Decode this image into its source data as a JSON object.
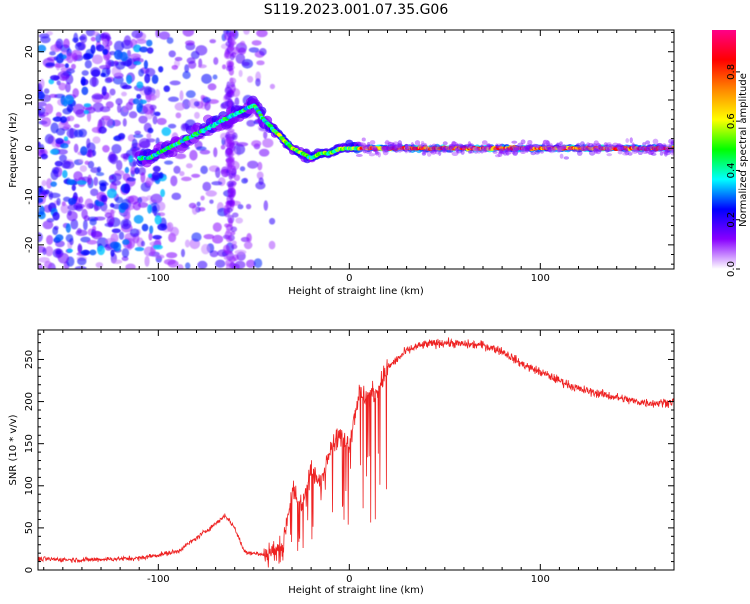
{
  "figure": {
    "title": "S119.2023.001.07.35.G06"
  },
  "chart_data": [
    {
      "type": "heatmap",
      "xlabel": "Height of straight line (km)",
      "ylabel": "Frequency (Hz)",
      "xlim": [
        -163,
        170
      ],
      "ylim": [
        -25,
        24.5
      ],
      "xticks": [
        -100,
        0,
        100
      ],
      "yticks": [
        -20,
        -10,
        0,
        10,
        20
      ],
      "colorbar": {
        "label": "Normalized spectral amplitude",
        "range": [
          0,
          0.97
        ],
        "ticks": [
          0.0,
          0.2,
          0.4,
          0.6,
          0.8
        ],
        "tick_labels": [
          "0.0",
          "0.2",
          "0.4",
          "0.6",
          "0.8"
        ],
        "colormap": [
          "#ffffff",
          "#8800ff",
          "#0000ff",
          "#00ffff",
          "#00ff00",
          "#ffff00",
          "#ff8800",
          "#ff0000",
          "#ff0088"
        ]
      },
      "ridge": {
        "x": [
          -105,
          -95,
          -85,
          -75,
          -65,
          -55,
          -50,
          -45,
          -40,
          -35,
          -30,
          -25,
          -20,
          -15,
          -10,
          -5,
          0,
          10,
          50,
          100,
          150,
          170
        ],
        "y": [
          -2,
          0,
          2,
          4,
          6,
          8,
          9,
          6,
          4,
          2,
          0,
          -1,
          -2,
          -1,
          -1,
          0,
          0,
          0,
          0,
          0,
          0,
          0
        ]
      }
    },
    {
      "type": "line",
      "xlabel": "Height of straight line (km)",
      "ylabel": "SNR (10 * v/v)",
      "xlim": [
        -163,
        170
      ],
      "ylim": [
        0,
        285
      ],
      "xticks": [
        -100,
        0,
        100
      ],
      "yticks": [
        0,
        50,
        100,
        150,
        200,
        250
      ],
      "color": "#ee2222",
      "envelope": {
        "x": [
          -163,
          -140,
          -110,
          -90,
          -80,
          -70,
          -65,
          -60,
          -55,
          -45,
          -35,
          -30,
          -25,
          -20,
          -15,
          -10,
          -5,
          0,
          5,
          10,
          15,
          20,
          25,
          30,
          35,
          40,
          50,
          60,
          70,
          80,
          90,
          100,
          110,
          120,
          130,
          140,
          150,
          160,
          170
        ],
        "y": [
          13,
          12,
          14,
          22,
          38,
          55,
          65,
          50,
          22,
          18,
          28,
          95,
          75,
          120,
          100,
          150,
          160,
          150,
          210,
          205,
          215,
          240,
          250,
          260,
          265,
          268,
          270,
          268,
          267,
          260,
          245,
          235,
          225,
          215,
          210,
          205,
          200,
          198,
          200
        ]
      }
    }
  ]
}
